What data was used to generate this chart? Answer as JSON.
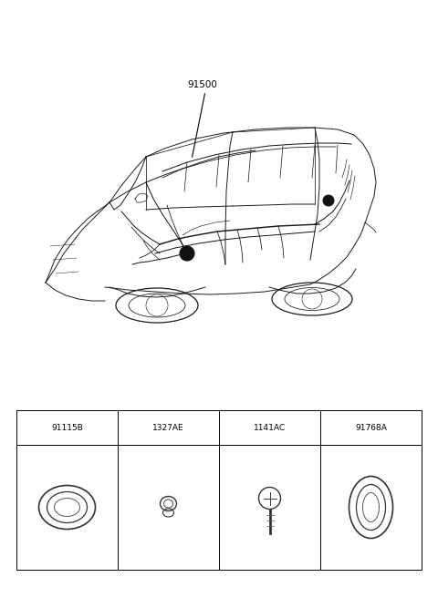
{
  "background_color": "#ffffff",
  "fig_width": 4.8,
  "fig_height": 6.56,
  "dpi": 100,
  "car_label": "91500",
  "part_ids": [
    "91115B",
    "1327AE",
    "1141AC",
    "91768A"
  ],
  "line_color": "#1a1a1a",
  "table_lw": 0.7,
  "car_lw": 0.7,
  "wire_lw": 0.6,
  "header_fontsize": 6.5
}
